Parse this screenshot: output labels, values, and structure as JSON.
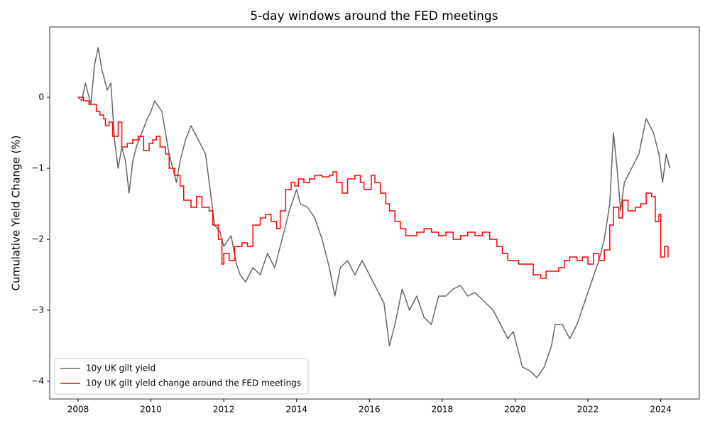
{
  "chart_data": {
    "type": "line",
    "title": "5-day windows around the FED meetings",
    "ylabel": "Cumulative Yield Change (%)",
    "xlim": [
      2007.22,
      2025.06
    ],
    "ylim": [
      -4.25,
      0.99
    ],
    "xticks": [
      2008,
      2010,
      2012,
      2014,
      2016,
      2018,
      2020,
      2022,
      2024
    ],
    "yticks": [
      {
        "value": 0,
        "label": "0"
      },
      {
        "value": -1,
        "label": "−1"
      },
      {
        "value": -2,
        "label": "−2"
      },
      {
        "value": -3,
        "label": "−3"
      },
      {
        "value": -4,
        "label": "−4"
      }
    ],
    "legend": "lower left",
    "series": [
      {
        "name": "10y UK gilt yield",
        "color": "#666666",
        "drawstyle": "default",
        "x": [
          2008.0,
          2008.1,
          2008.2,
          2008.35,
          2008.45,
          2008.55,
          2008.65,
          2008.8,
          2008.9,
          2009.0,
          2009.1,
          2009.2,
          2009.3,
          2009.4,
          2009.5,
          2009.6,
          2009.75,
          2009.9,
          2010.0,
          2010.1,
          2010.3,
          2010.4,
          2010.5,
          2010.6,
          2010.7,
          2010.8,
          2010.95,
          2011.1,
          2011.3,
          2011.5,
          2011.6,
          2011.75,
          2011.9,
          2012.0,
          2012.2,
          2012.35,
          2012.45,
          2012.6,
          2012.8,
          2013.0,
          2013.2,
          2013.4,
          2013.6,
          2013.8,
          2014.0,
          2014.1,
          2014.3,
          2014.5,
          2014.7,
          2014.9,
          2015.05,
          2015.2,
          2015.4,
          2015.6,
          2015.8,
          2016.0,
          2016.2,
          2016.4,
          2016.55,
          2016.7,
          2016.9,
          2017.1,
          2017.3,
          2017.5,
          2017.7,
          2017.9,
          2018.1,
          2018.3,
          2018.5,
          2018.7,
          2018.9,
          2019.2,
          2019.4,
          2019.6,
          2019.8,
          2019.95,
          2020.1,
          2020.2,
          2020.4,
          2020.6,
          2020.8,
          2021.0,
          2021.1,
          2021.3,
          2021.5,
          2021.7,
          2021.9,
          2022.1,
          2022.3,
          2022.45,
          2022.6,
          2022.7,
          2022.8,
          2022.9,
          2023.0,
          2023.2,
          2023.4,
          2023.6,
          2023.8,
          2023.95,
          2024.05,
          2024.15,
          2024.25
        ],
        "values": [
          0,
          -0.05,
          0.2,
          -0.1,
          0.45,
          0.7,
          0.4,
          0.1,
          0.2,
          -0.6,
          -1.0,
          -0.7,
          -0.9,
          -1.35,
          -0.9,
          -0.7,
          -0.5,
          -0.3,
          -0.2,
          -0.05,
          -0.2,
          -0.5,
          -0.8,
          -1.0,
          -1.2,
          -0.9,
          -0.6,
          -0.4,
          -0.6,
          -0.8,
          -1.2,
          -1.8,
          -1.9,
          -2.1,
          -1.95,
          -2.35,
          -2.5,
          -2.6,
          -2.4,
          -2.5,
          -2.2,
          -2.4,
          -2.0,
          -1.6,
          -1.3,
          -1.5,
          -1.55,
          -1.7,
          -2.0,
          -2.4,
          -2.8,
          -2.4,
          -2.3,
          -2.5,
          -2.3,
          -2.5,
          -2.7,
          -2.9,
          -3.5,
          -3.2,
          -2.7,
          -3.0,
          -2.8,
          -3.1,
          -3.2,
          -2.8,
          -2.8,
          -2.7,
          -2.65,
          -2.8,
          -2.75,
          -2.9,
          -3.0,
          -3.2,
          -3.4,
          -3.3,
          -3.6,
          -3.8,
          -3.85,
          -3.95,
          -3.8,
          -3.5,
          -3.2,
          -3.2,
          -3.4,
          -3.2,
          -2.9,
          -2.6,
          -2.3,
          -2.0,
          -1.5,
          -0.5,
          -1.0,
          -1.6,
          -1.2,
          -1.0,
          -0.8,
          -0.3,
          -0.5,
          -0.8,
          -1.2,
          -0.8,
          -1.0
        ]
      },
      {
        "name": "10y UK gilt yield change around the FED meetings",
        "color": "#ff0000",
        "drawstyle": "steps-post",
        "x": [
          2008.0,
          2008.15,
          2008.3,
          2008.5,
          2008.6,
          2008.7,
          2008.75,
          2008.85,
          2008.95,
          2009.1,
          2009.2,
          2009.35,
          2009.5,
          2009.65,
          2009.8,
          2009.95,
          2010.05,
          2010.15,
          2010.25,
          2010.4,
          2010.5,
          2010.65,
          2010.8,
          2010.9,
          2011.1,
          2011.25,
          2011.4,
          2011.6,
          2011.7,
          2011.85,
          2011.95,
          2012.0,
          2012.15,
          2012.3,
          2012.5,
          2012.65,
          2012.8,
          2013.0,
          2013.15,
          2013.3,
          2013.45,
          2013.55,
          2013.7,
          2013.85,
          2013.95,
          2014.05,
          2014.2,
          2014.35,
          2014.5,
          2014.7,
          2014.9,
          2015.0,
          2015.1,
          2015.25,
          2015.4,
          2015.6,
          2015.75,
          2015.85,
          2016.05,
          2016.15,
          2016.3,
          2016.45,
          2016.55,
          2016.7,
          2016.85,
          2017.0,
          2017.3,
          2017.5,
          2017.7,
          2017.9,
          2018.1,
          2018.3,
          2018.5,
          2018.7,
          2018.9,
          2019.1,
          2019.3,
          2019.5,
          2019.65,
          2019.8,
          2019.95,
          2020.1,
          2020.3,
          2020.5,
          2020.7,
          2020.85,
          2021.0,
          2021.2,
          2021.35,
          2021.5,
          2021.7,
          2021.85,
          2022.0,
          2022.15,
          2022.3,
          2022.45,
          2022.6,
          2022.7,
          2022.85,
          2022.95,
          2023.1,
          2023.3,
          2023.45,
          2023.6,
          2023.75,
          2023.85,
          2023.95,
          2024.0,
          2024.1,
          2024.2
        ],
        "values": [
          0,
          -0.05,
          -0.1,
          -0.2,
          -0.25,
          -0.3,
          -0.4,
          -0.35,
          -0.55,
          -0.35,
          -0.7,
          -0.65,
          -0.6,
          -0.55,
          -0.75,
          -0.65,
          -0.6,
          -0.55,
          -0.7,
          -0.8,
          -1.0,
          -1.1,
          -1.25,
          -1.45,
          -1.55,
          -1.4,
          -1.55,
          -1.6,
          -1.8,
          -2.0,
          -2.35,
          -2.2,
          -2.3,
          -2.1,
          -2.05,
          -2.1,
          -1.8,
          -1.7,
          -1.65,
          -1.75,
          -1.85,
          -1.6,
          -1.3,
          -1.2,
          -1.25,
          -1.15,
          -1.2,
          -1.15,
          -1.1,
          -1.12,
          -1.1,
          -1.05,
          -1.2,
          -1.35,
          -1.15,
          -1.1,
          -1.2,
          -1.3,
          -1.1,
          -1.2,
          -1.35,
          -1.5,
          -1.6,
          -1.75,
          -1.85,
          -1.95,
          -1.9,
          -1.85,
          -1.9,
          -1.95,
          -1.9,
          -2.0,
          -1.95,
          -1.9,
          -1.95,
          -1.9,
          -2.0,
          -2.1,
          -2.2,
          -2.3,
          -2.3,
          -2.35,
          -2.35,
          -2.5,
          -2.55,
          -2.45,
          -2.45,
          -2.4,
          -2.3,
          -2.25,
          -2.3,
          -2.25,
          -2.35,
          -2.2,
          -2.3,
          -2.15,
          -1.8,
          -1.55,
          -1.7,
          -1.45,
          -1.6,
          -1.55,
          -1.5,
          -1.35,
          -1.4,
          -1.75,
          -1.65,
          -2.25,
          -2.1,
          -2.25
        ]
      }
    ]
  }
}
